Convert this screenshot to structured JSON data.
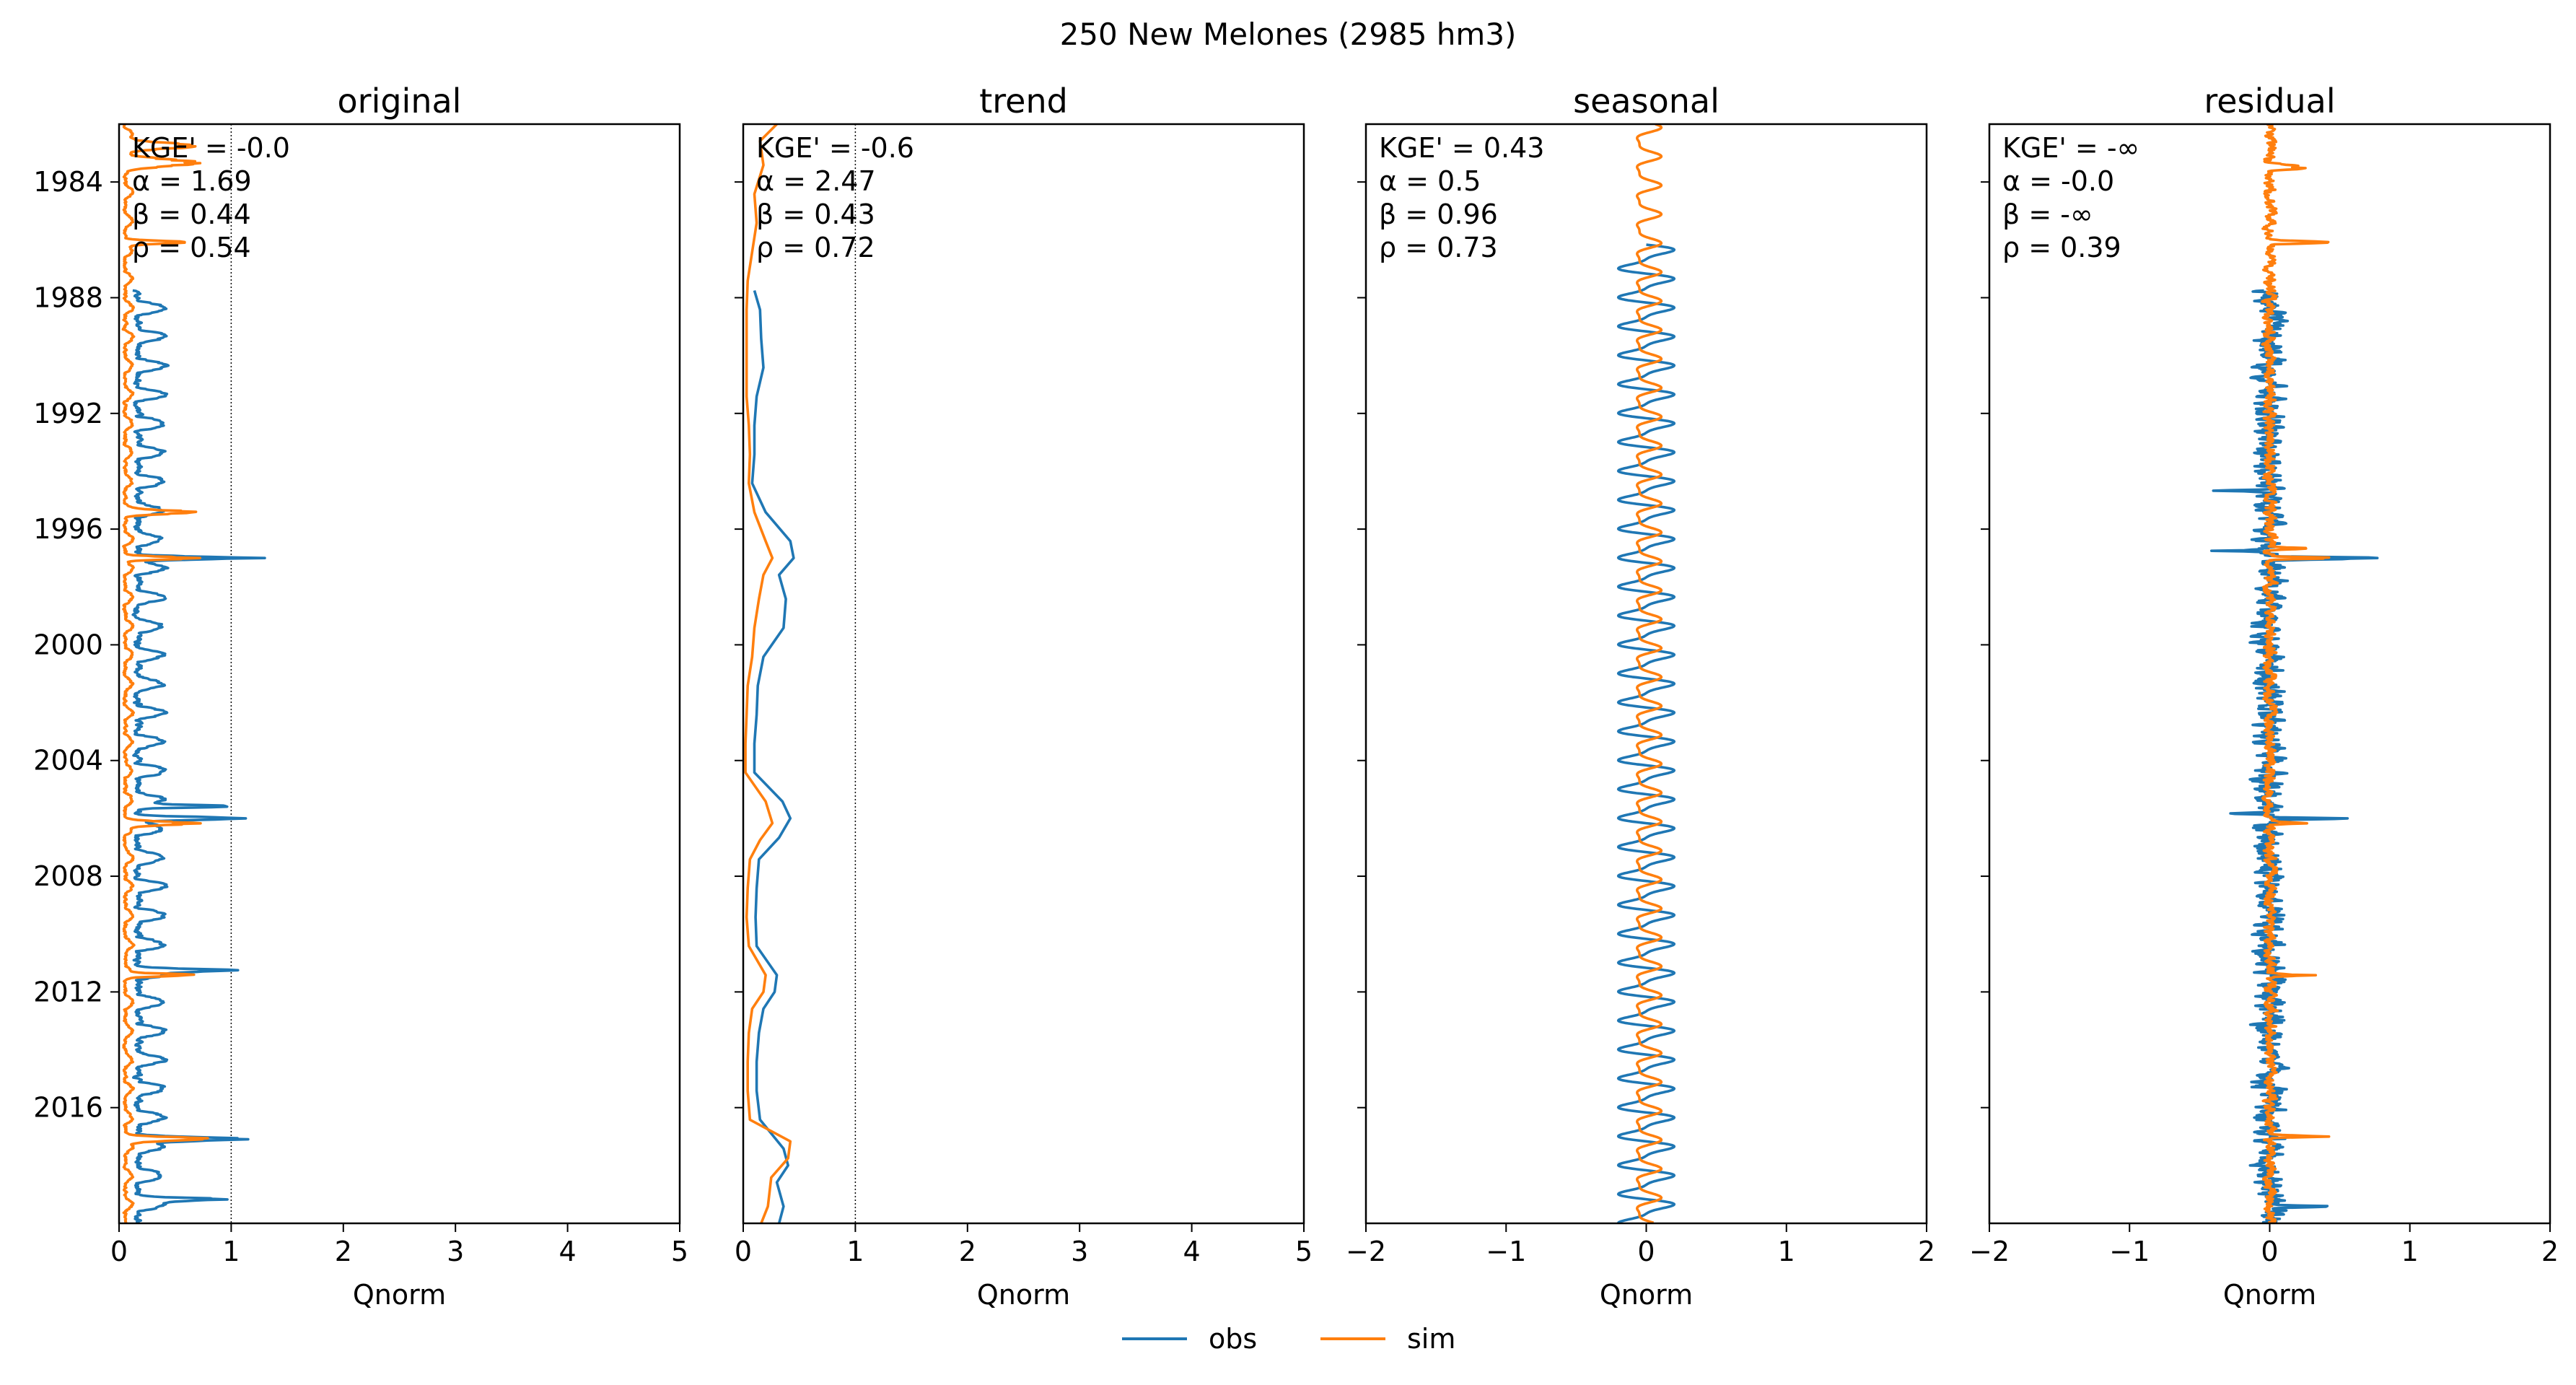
{
  "figure": {
    "title": "250  New Melones (2985 hm3)",
    "colors": {
      "obs": "#1f77b4",
      "sim": "#ff7f0e",
      "axis": "#000000",
      "refline": "#000000"
    },
    "legend": {
      "placement": "bottom-center",
      "entries": [
        {
          "key": "obs",
          "label": "obs"
        },
        {
          "key": "sim",
          "label": "sim"
        }
      ]
    }
  },
  "chart_data": [
    {
      "type": "line",
      "title": "original",
      "xlabel": "Qnorm",
      "ylabel": "",
      "xlim": [
        0,
        5
      ],
      "xticks": [
        0,
        1,
        2,
        3,
        4,
        5
      ],
      "xtick_labels": [
        "0",
        "1",
        "2",
        "3",
        "4",
        "5"
      ],
      "ylim": [
        "1982-01-01",
        "2020-01-01"
      ],
      "yticks": [
        "1984",
        "1988",
        "1992",
        "1996",
        "2000",
        "2004",
        "2008",
        "2012",
        "2016"
      ],
      "show_ytick_labels": true,
      "vlines": [
        0,
        1
      ],
      "stats": [
        "KGE' = -0.0",
        "α = 1.69",
        "β = 0.44",
        "ρ = 0.54"
      ],
      "series": [
        {
          "name": "obs",
          "start": "1987-10-01",
          "end": "2019-12-31",
          "base": 0.22,
          "amp": 0.14,
          "noise": 0.12,
          "seed": 11,
          "peaks": [
            {
              "t": "1997-01-01",
              "v": 1.15,
              "w": 0.12
            },
            {
              "t": "2006-01-01",
              "v": 1.05,
              "w": 0.12
            },
            {
              "t": "2005-08-01",
              "v": 0.9,
              "w": 0.1
            },
            {
              "t": "2017-02-01",
              "v": 1.05,
              "w": 0.15
            },
            {
              "t": "2019-03-01",
              "v": 0.8,
              "w": 0.12
            },
            {
              "t": "2011-04-01",
              "v": 0.7,
              "w": 0.12
            }
          ]
        },
        {
          "name": "sim",
          "start": "1982-01-01",
          "end": "2019-12-31",
          "base": 0.06,
          "amp": 0.04,
          "noise": 0.05,
          "seed": 23,
          "peaks": [
            {
              "t": "1982-10-01",
              "v": 0.72,
              "w": 0.25
            },
            {
              "t": "1983-05-01",
              "v": 0.62,
              "w": 0.3
            },
            {
              "t": "1986-02-01",
              "v": 0.7,
              "w": 0.12
            },
            {
              "t": "1995-06-01",
              "v": 0.62,
              "w": 0.15
            },
            {
              "t": "1997-01-01",
              "v": 0.7,
              "w": 0.12
            },
            {
              "t": "2006-03-01",
              "v": 0.65,
              "w": 0.15
            },
            {
              "t": "2011-06-01",
              "v": 0.7,
              "w": 0.1
            },
            {
              "t": "2017-02-01",
              "v": 0.88,
              "w": 0.15
            }
          ]
        }
      ]
    },
    {
      "type": "line",
      "title": "trend",
      "xlabel": "Qnorm",
      "ylabel": "",
      "xlim": [
        0,
        5
      ],
      "xticks": [
        0,
        1,
        2,
        3,
        4,
        5
      ],
      "xtick_labels": [
        "0",
        "1",
        "2",
        "3",
        "4",
        "5"
      ],
      "ylim": [
        "1982-01-01",
        "2020-01-01"
      ],
      "yticks": [
        "1984",
        "1988",
        "1992",
        "1996",
        "2000",
        "2004",
        "2008",
        "2012",
        "2016"
      ],
      "show_ytick_labels": false,
      "vlines": [
        0,
        1
      ],
      "stats": [
        "KGE' = -0.6",
        "α = 2.47",
        "β = 0.43",
        "ρ = 0.72"
      ],
      "series": [
        {
          "name": "obs",
          "points": [
            [
              "1987-10-01",
              0.1
            ],
            [
              "1988-06-01",
              0.15
            ],
            [
              "1989-06-01",
              0.16
            ],
            [
              "1990-06-01",
              0.18
            ],
            [
              "1991-06-01",
              0.12
            ],
            [
              "1992-06-01",
              0.1
            ],
            [
              "1993-06-01",
              0.1
            ],
            [
              "1994-06-01",
              0.08
            ],
            [
              "1995-06-01",
              0.2
            ],
            [
              "1996-06-01",
              0.42
            ],
            [
              "1997-01-01",
              0.45
            ],
            [
              "1997-08-01",
              0.32
            ],
            [
              "1998-06-01",
              0.38
            ],
            [
              "1999-06-01",
              0.36
            ],
            [
              "2000-06-01",
              0.18
            ],
            [
              "2001-06-01",
              0.13
            ],
            [
              "2002-06-01",
              0.12
            ],
            [
              "2003-06-01",
              0.1
            ],
            [
              "2004-06-01",
              0.1
            ],
            [
              "2005-06-01",
              0.35
            ],
            [
              "2006-01-01",
              0.42
            ],
            [
              "2006-09-01",
              0.32
            ],
            [
              "2007-06-01",
              0.14
            ],
            [
              "2008-06-01",
              0.12
            ],
            [
              "2009-06-01",
              0.11
            ],
            [
              "2010-06-01",
              0.12
            ],
            [
              "2011-06-01",
              0.3
            ],
            [
              "2012-01-01",
              0.28
            ],
            [
              "2012-08-01",
              0.18
            ],
            [
              "2013-06-01",
              0.14
            ],
            [
              "2014-06-01",
              0.12
            ],
            [
              "2015-06-01",
              0.12
            ],
            [
              "2016-06-01",
              0.15
            ],
            [
              "2017-06-01",
              0.36
            ],
            [
              "2018-01-01",
              0.4
            ],
            [
              "2018-08-01",
              0.3
            ],
            [
              "2019-06-01",
              0.36
            ],
            [
              "2019-12-31",
              0.32
            ]
          ]
        },
        {
          "name": "sim",
          "points": [
            [
              "1982-01-01",
              0.3
            ],
            [
              "1982-08-01",
              0.15
            ],
            [
              "1983-06-01",
              0.18
            ],
            [
              "1984-06-01",
              0.1
            ],
            [
              "1985-06-01",
              0.12
            ],
            [
              "1986-06-01",
              0.08
            ],
            [
              "1987-06-01",
              0.04
            ],
            [
              "1988-06-01",
              0.03
            ],
            [
              "1989-06-01",
              0.03
            ],
            [
              "1990-06-01",
              0.03
            ],
            [
              "1991-06-01",
              0.03
            ],
            [
              "1992-06-01",
              0.05
            ],
            [
              "1993-06-01",
              0.06
            ],
            [
              "1994-06-01",
              0.05
            ],
            [
              "1995-06-01",
              0.1
            ],
            [
              "1996-06-01",
              0.2
            ],
            [
              "1997-01-01",
              0.26
            ],
            [
              "1997-08-01",
              0.18
            ],
            [
              "1998-06-01",
              0.14
            ],
            [
              "1999-06-01",
              0.1
            ],
            [
              "2000-06-01",
              0.08
            ],
            [
              "2001-06-01",
              0.04
            ],
            [
              "2002-06-01",
              0.03
            ],
            [
              "2003-06-01",
              0.02
            ],
            [
              "2004-06-01",
              0.02
            ],
            [
              "2005-06-01",
              0.2
            ],
            [
              "2006-03-01",
              0.26
            ],
            [
              "2006-10-01",
              0.15
            ],
            [
              "2007-06-01",
              0.06
            ],
            [
              "2008-06-01",
              0.04
            ],
            [
              "2009-06-01",
              0.03
            ],
            [
              "2010-06-01",
              0.05
            ],
            [
              "2011-06-01",
              0.2
            ],
            [
              "2012-01-01",
              0.18
            ],
            [
              "2012-08-01",
              0.08
            ],
            [
              "2013-06-01",
              0.05
            ],
            [
              "2014-06-01",
              0.04
            ],
            [
              "2015-06-01",
              0.04
            ],
            [
              "2016-06-01",
              0.06
            ],
            [
              "2017-03-01",
              0.42
            ],
            [
              "2017-10-01",
              0.4
            ],
            [
              "2018-06-01",
              0.25
            ],
            [
              "2019-06-01",
              0.22
            ],
            [
              "2019-12-31",
              0.16
            ]
          ]
        }
      ]
    },
    {
      "type": "line",
      "title": "seasonal",
      "xlabel": "Qnorm",
      "ylabel": "",
      "xlim": [
        -2,
        2
      ],
      "xticks": [
        -2,
        -1,
        0,
        1,
        2
      ],
      "xtick_labels": [
        "−2",
        "−1",
        "0",
        "1",
        "2"
      ],
      "ylim": [
        "1982-01-01",
        "2020-01-01"
      ],
      "yticks": [
        "1984",
        "1988",
        "1992",
        "1996",
        "2000",
        "2004",
        "2008",
        "2012",
        "2016"
      ],
      "show_ytick_labels": false,
      "vlines": [],
      "stats": [
        "KGE' = 0.43",
        "α = 0.5",
        "β = 0.96",
        "ρ = 0.73"
      ],
      "series": [
        {
          "name": "obs",
          "start": "1986-03-01",
          "end": "2019-12-31",
          "kind": "periodic",
          "center": 0.0,
          "amp": 0.17,
          "period_years": 1.0,
          "phase": 0.0
        },
        {
          "name": "sim",
          "start": "1982-01-01",
          "end": "2019-12-31",
          "kind": "periodic",
          "center": 0.0,
          "amp": 0.08,
          "period_years": 1.0,
          "phase": 0.15
        }
      ]
    },
    {
      "type": "line",
      "title": "residual",
      "xlabel": "Qnorm",
      "ylabel": "",
      "xlim": [
        -2,
        2
      ],
      "xticks": [
        -2,
        -1,
        0,
        1,
        2
      ],
      "xtick_labels": [
        "−2",
        "−1",
        "0",
        "1",
        "2"
      ],
      "ylim": [
        "1982-01-01",
        "2020-01-01"
      ],
      "yticks": [
        "1984",
        "1988",
        "1992",
        "1996",
        "2000",
        "2004",
        "2008",
        "2012",
        "2016"
      ],
      "show_ytick_labels": false,
      "vlines": [],
      "stats": [
        "KGE' = -∞",
        "α = -0.0",
        "β = -∞",
        "ρ = 0.39"
      ],
      "series": [
        {
          "name": "obs",
          "start": "1987-10-01",
          "end": "2019-12-31",
          "kind": "noise",
          "center": 0.0,
          "noise": 0.18,
          "seed": 31,
          "peaks": [
            {
              "t": "1997-01-01",
              "v": 0.85,
              "w": 0.1
            },
            {
              "t": "2006-01-01",
              "v": 0.65,
              "w": 0.08
            },
            {
              "t": "2005-11-01",
              "v": -0.4,
              "w": 0.06
            },
            {
              "t": "1996-10-01",
              "v": -0.35,
              "w": 0.06
            },
            {
              "t": "1994-09-01",
              "v": -0.35,
              "w": 0.06
            },
            {
              "t": "2019-06-01",
              "v": 0.55,
              "w": 0.08
            }
          ]
        },
        {
          "name": "sim",
          "start": "1982-01-01",
          "end": "2019-12-31",
          "kind": "noise",
          "center": 0.0,
          "noise": 0.07,
          "seed": 47,
          "peaks": [
            {
              "t": "1986-02-01",
              "v": 0.55,
              "w": 0.1
            },
            {
              "t": "1983-07-01",
              "v": 0.3,
              "w": 0.2
            },
            {
              "t": "1997-01-01",
              "v": 0.5,
              "w": 0.08
            },
            {
              "t": "1996-09-01",
              "v": 0.35,
              "w": 0.08
            },
            {
              "t": "2011-06-01",
              "v": 0.35,
              "w": 0.08
            },
            {
              "t": "2017-01-01",
              "v": 0.45,
              "w": 0.08
            },
            {
              "t": "2006-03-01",
              "v": 0.3,
              "w": 0.08
            }
          ]
        }
      ]
    }
  ]
}
